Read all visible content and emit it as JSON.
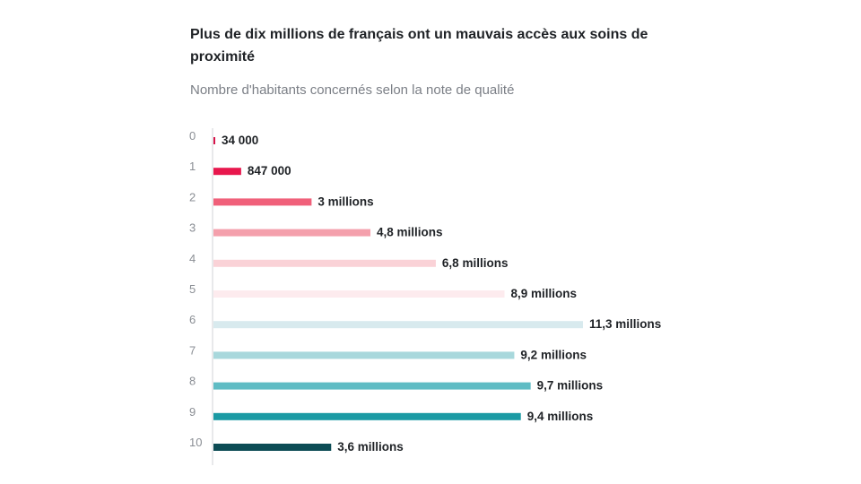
{
  "chart_data": {
    "type": "bar",
    "orientation": "horizontal",
    "title": "Plus de dix millions de français ont un mauvais accès aux soins de proximité",
    "subtitle": "Nombre d'habitants concernés selon la note de qualité",
    "categories": [
      "0",
      "1",
      "2",
      "3",
      "4",
      "5",
      "6",
      "7",
      "8",
      "9",
      "10"
    ],
    "values": [
      34000,
      847000,
      3000000,
      4800000,
      6800000,
      8900000,
      11300000,
      9200000,
      9700000,
      9400000,
      3600000
    ],
    "data_labels": [
      "34 000",
      "847 000",
      "3 millions",
      "4,8 millions",
      "6,8 millions",
      "8,9 millions",
      "11,3 millions",
      "9,2 millions",
      "9,7 millions",
      "9,4 millions",
      "3,6 millions"
    ],
    "colors": [
      "#d6144a",
      "#e8174d",
      "#f0607a",
      "#f4a0ac",
      "#fad2d7",
      "#fdebee",
      "#d8eaee",
      "#a8d8dc",
      "#5fbcc4",
      "#1b9aa4",
      "#0d4c55"
    ],
    "xlabel": "",
    "ylabel": "",
    "xlim": [
      0,
      11300000
    ],
    "grid": false,
    "legend": "none"
  }
}
